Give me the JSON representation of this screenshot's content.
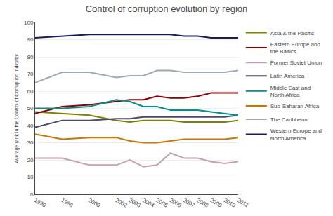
{
  "chart_data": {
    "type": "line",
    "title": "Control of corruption evolution by region",
    "ylabel": "Average rank in the Control of Corruption indicator",
    "x": [
      1996,
      1998,
      2000,
      2002,
      2003,
      2004,
      2005,
      2006,
      2007,
      2008,
      2009,
      2010,
      2011
    ],
    "series": [
      {
        "name": "Asia & the Pacific",
        "color": "#808000",
        "values": [
          48,
          47,
          46,
          43,
          42,
          43,
          43,
          43,
          42,
          42,
          42,
          42,
          43
        ]
      },
      {
        "name": "Eastern Europe and\nthe Baltics",
        "color": "#8B0000",
        "values": [
          47,
          51,
          52,
          54,
          55,
          55,
          57,
          56,
          56,
          57,
          59,
          59,
          59
        ]
      },
      {
        "name": "Former Soviet Union",
        "color": "#c8a0a8",
        "values": [
          21,
          21,
          17,
          17,
          20,
          16,
          17,
          24,
          21,
          21,
          19,
          18,
          19
        ]
      },
      {
        "name": "Latin America",
        "color": "#4a4a6a",
        "values": [
          39,
          43,
          43,
          44,
          44,
          45,
          45,
          45,
          45,
          45,
          45,
          45,
          46
        ]
      },
      {
        "name": "Middle East and\nNorth Africa",
        "color": "#009090",
        "values": [
          50,
          50,
          51,
          55,
          54,
          51,
          51,
          49,
          49,
          49,
          48,
          47,
          46
        ]
      },
      {
        "name": "Sub-Saharan Africa",
        "color": "#c87800",
        "values": [
          35,
          32,
          33,
          33,
          31,
          30,
          30,
          31,
          32,
          32,
          32,
          32,
          33
        ]
      },
      {
        "name": "The Caribbean",
        "color": "#a0a8b8",
        "values": [
          65,
          71,
          71,
          68,
          69,
          69,
          72,
          72,
          71,
          71,
          71,
          71,
          72
        ]
      },
      {
        "name": "Western Europe and\nNorth America",
        "color": "#1a1a5e",
        "values": [
          91,
          92,
          93,
          93,
          93,
          93,
          93,
          93,
          92,
          92,
          91,
          91,
          91
        ]
      }
    ],
    "xlim": [
      1996,
      2011
    ],
    "xticks": [
      1996,
      1998,
      2000,
      2002,
      2003,
      2004,
      2005,
      2006,
      2007,
      2008,
      2009,
      2010,
      2011
    ],
    "ylim": [
      0,
      100
    ],
    "yticks": [
      0,
      10,
      20,
      30,
      40,
      50,
      60,
      70,
      80,
      90,
      100
    ],
    "grid": "y",
    "legend": "right"
  }
}
